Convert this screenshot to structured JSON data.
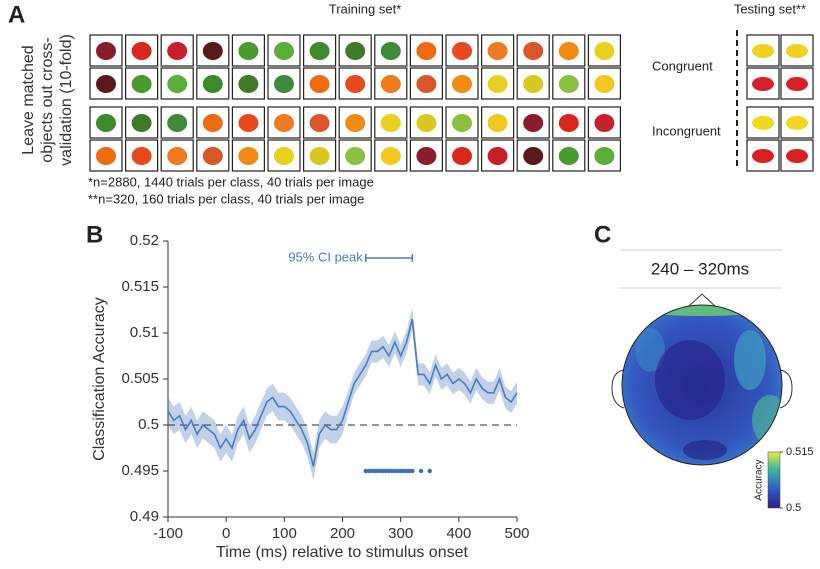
{
  "panel_labels": [
    "A",
    "B",
    "C"
  ],
  "panel_a": {
    "training_title": "Training set*",
    "testing_title": "Testing set**",
    "side_label": [
      "Leave matched",
      "objects out cross-",
      "validation (10-fold)"
    ],
    "conditions": [
      "Congruent",
      "Incongruent"
    ],
    "footnotes": [
      "*n=2880, 1440 trials per class, 40 trials per image",
      "**n=320, 160 trials per class, 40 trials per image"
    ]
  },
  "chart_data": {
    "type": "line",
    "xlabel": "Time (ms) relative to stimulus onset",
    "ylabel": "Classification Accuracy",
    "xlim": [
      -100,
      500
    ],
    "xticks": [
      -100,
      0,
      100,
      200,
      300,
      400,
      500
    ],
    "ylim": [
      0.49,
      0.52
    ],
    "yticks": [
      0.49,
      0.495,
      0.5,
      0.505,
      0.51,
      0.515,
      0.52
    ],
    "reference_line": 0.5,
    "ci_peak": {
      "label": "95% CI peak",
      "range": [
        240,
        320
      ]
    },
    "series": [
      {
        "name": "accuracy",
        "color": "#4a7cc0",
        "x": [
          -100,
          -90,
          -80,
          -70,
          -60,
          -50,
          -40,
          -30,
          -20,
          -10,
          0,
          10,
          20,
          30,
          40,
          50,
          60,
          70,
          80,
          90,
          100,
          110,
          120,
          130,
          140,
          150,
          160,
          170,
          180,
          190,
          200,
          210,
          220,
          230,
          240,
          250,
          260,
          270,
          280,
          290,
          300,
          310,
          320,
          330,
          340,
          350,
          360,
          370,
          380,
          390,
          400,
          410,
          420,
          430,
          440,
          450,
          460,
          470,
          480,
          490,
          500
        ],
        "values": [
          0.5015,
          0.5005,
          0.501,
          0.4995,
          0.5005,
          0.499,
          0.5,
          0.4995,
          0.499,
          0.4975,
          0.4985,
          0.4975,
          0.4995,
          0.5005,
          0.4985,
          0.4995,
          0.501,
          0.5025,
          0.503,
          0.502,
          0.502,
          0.5015,
          0.5005,
          0.4995,
          0.498,
          0.4955,
          0.499,
          0.5,
          0.4995,
          0.4995,
          0.5005,
          0.5025,
          0.5045,
          0.5055,
          0.5065,
          0.508,
          0.508,
          0.5085,
          0.5075,
          0.509,
          0.5075,
          0.509,
          0.5115,
          0.5055,
          0.5055,
          0.5045,
          0.5065,
          0.505,
          0.5055,
          0.5045,
          0.505,
          0.5045,
          0.5035,
          0.505,
          0.504,
          0.5035,
          0.5035,
          0.505,
          0.503,
          0.5025,
          0.5035
        ],
        "error": [
          0.0015,
          0.0015,
          0.0015,
          0.0015,
          0.0015,
          0.0015,
          0.0015,
          0.0015,
          0.0015,
          0.0015,
          0.0015,
          0.0015,
          0.0015,
          0.0015,
          0.0015,
          0.0015,
          0.0015,
          0.0015,
          0.0015,
          0.0015,
          0.0015,
          0.0015,
          0.0015,
          0.0015,
          0.0015,
          0.0015,
          0.0015,
          0.0015,
          0.0015,
          0.0015,
          0.0015,
          0.0012,
          0.0012,
          0.0012,
          0.0012,
          0.0012,
          0.0012,
          0.0012,
          0.0012,
          0.0012,
          0.0012,
          0.0012,
          0.0012,
          0.0012,
          0.0012,
          0.0012,
          0.0012,
          0.0012,
          0.0012,
          0.0012,
          0.0012,
          0.0012,
          0.0012,
          0.0012,
          0.0012,
          0.0012,
          0.0012,
          0.0012,
          0.0012,
          0.0012,
          0.0012
        ]
      },
      {
        "name": "significant",
        "color": "#3a6fb8",
        "x": [
          240,
          245,
          250,
          255,
          260,
          265,
          270,
          275,
          280,
          285,
          290,
          295,
          300,
          305,
          310,
          315,
          320,
          335,
          350
        ],
        "values": [
          0.495,
          0.495,
          0.495,
          0.495,
          0.495,
          0.495,
          0.495,
          0.495,
          0.495,
          0.495,
          0.495,
          0.495,
          0.495,
          0.495,
          0.495,
          0.495,
          0.495,
          0.495,
          0.495
        ]
      }
    ]
  },
  "panel_c": {
    "window": "240 – 320ms",
    "colorbar": {
      "label": "Accuracy",
      "lim": [
        0.5,
        0.515
      ],
      "ticks": [
        0.5,
        0.515
      ]
    }
  }
}
